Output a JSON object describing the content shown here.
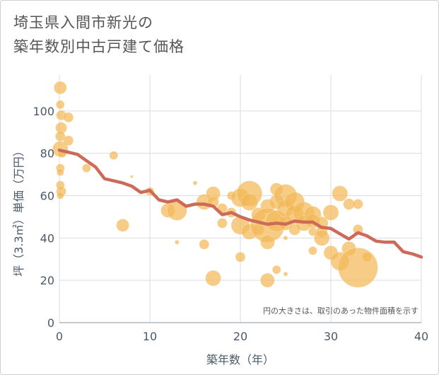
{
  "title_lines": [
    "埼玉県入間市新光の",
    "築年数別中古戸建て価格"
  ],
  "chart_data": {
    "type": "scatter",
    "xlabel": "築年数（年）",
    "ylabel": "坪（3.3㎡）単価（万円）",
    "xlim": [
      0,
      40
    ],
    "ylim": [
      0,
      117
    ],
    "xticks": [
      0,
      10,
      20,
      30,
      40
    ],
    "yticks": [
      0,
      20,
      40,
      60,
      80,
      100
    ],
    "grid": true,
    "annotation": "円の大きさは、取引のあった物件面積を示す",
    "colors": {
      "bubble": "#f2b858",
      "line": "#cd6a58",
      "grid": "#d8dde3",
      "text": "#4a5a6a"
    },
    "points": [
      {
        "x": 0.1,
        "y": 111,
        "s": 9
      },
      {
        "x": 0.1,
        "y": 103,
        "s": 6
      },
      {
        "x": 0.2,
        "y": 98,
        "s": 7
      },
      {
        "x": 0.2,
        "y": 92,
        "s": 8
      },
      {
        "x": 0.1,
        "y": 88,
        "s": 7
      },
      {
        "x": 0.1,
        "y": 82,
        "s": 11
      },
      {
        "x": 0.3,
        "y": 80,
        "s": 6
      },
      {
        "x": 0.1,
        "y": 73,
        "s": 6
      },
      {
        "x": 0.1,
        "y": 71,
        "s": 5
      },
      {
        "x": 0.1,
        "y": 65,
        "s": 6
      },
      {
        "x": 0.2,
        "y": 62,
        "s": 7
      },
      {
        "x": 0.1,
        "y": 60,
        "s": 5
      },
      {
        "x": 1.0,
        "y": 97,
        "s": 7
      },
      {
        "x": 1.0,
        "y": 86,
        "s": 7
      },
      {
        "x": 3.0,
        "y": 73,
        "s": 6
      },
      {
        "x": 6.0,
        "y": 79,
        "s": 6
      },
      {
        "x": 7.0,
        "y": 46,
        "s": 9
      },
      {
        "x": 8.0,
        "y": 69,
        "s": 2
      },
      {
        "x": 10.0,
        "y": 62,
        "s": 6
      },
      {
        "x": 12.0,
        "y": 53,
        "s": 10
      },
      {
        "x": 13.0,
        "y": 53,
        "s": 14
      },
      {
        "x": 13.0,
        "y": 38,
        "s": 3
      },
      {
        "x": 15.0,
        "y": 66,
        "s": 3
      },
      {
        "x": 16.0,
        "y": 57,
        "s": 11
      },
      {
        "x": 16.0,
        "y": 37,
        "s": 7
      },
      {
        "x": 17.0,
        "y": 61,
        "s": 10
      },
      {
        "x": 17.0,
        "y": 57,
        "s": 8
      },
      {
        "x": 17.0,
        "y": 21,
        "s": 11
      },
      {
        "x": 18.0,
        "y": 47,
        "s": 7
      },
      {
        "x": 18.0,
        "y": 54,
        "s": 7
      },
      {
        "x": 19.0,
        "y": 52,
        "s": 7
      },
      {
        "x": 19.0,
        "y": 60,
        "s": 6
      },
      {
        "x": 20.0,
        "y": 59,
        "s": 13
      },
      {
        "x": 20.0,
        "y": 46,
        "s": 13
      },
      {
        "x": 20.0,
        "y": 31,
        "s": 7
      },
      {
        "x": 21.0,
        "y": 61,
        "s": 18
      },
      {
        "x": 21.0,
        "y": 57,
        "s": 12
      },
      {
        "x": 21.0,
        "y": 43,
        "s": 11
      },
      {
        "x": 22.0,
        "y": 51,
        "s": 10
      },
      {
        "x": 22.0,
        "y": 44,
        "s": 8
      },
      {
        "x": 23.0,
        "y": 55,
        "s": 10
      },
      {
        "x": 23.0,
        "y": 46,
        "s": 24
      },
      {
        "x": 23.0,
        "y": 38,
        "s": 10
      },
      {
        "x": 23.0,
        "y": 20,
        "s": 10
      },
      {
        "x": 24.0,
        "y": 63,
        "s": 9
      },
      {
        "x": 24.0,
        "y": 57,
        "s": 10
      },
      {
        "x": 24.0,
        "y": 48,
        "s": 15
      },
      {
        "x": 24.0,
        "y": 25,
        "s": 6
      },
      {
        "x": 25.0,
        "y": 60,
        "s": 16
      },
      {
        "x": 25.0,
        "y": 54,
        "s": 12
      },
      {
        "x": 25.0,
        "y": 47,
        "s": 10
      },
      {
        "x": 25.0,
        "y": 40,
        "s": 3
      },
      {
        "x": 25.0,
        "y": 23,
        "s": 3
      },
      {
        "x": 26.0,
        "y": 57,
        "s": 14
      },
      {
        "x": 26.0,
        "y": 51,
        "s": 13
      },
      {
        "x": 26.0,
        "y": 44,
        "s": 8
      },
      {
        "x": 27.0,
        "y": 52,
        "s": 15
      },
      {
        "x": 27.0,
        "y": 47,
        "s": 11
      },
      {
        "x": 28.0,
        "y": 51,
        "s": 12
      },
      {
        "x": 28.0,
        "y": 48,
        "s": 10
      },
      {
        "x": 28.0,
        "y": 43,
        "s": 6
      },
      {
        "x": 28.0,
        "y": 34,
        "s": 6
      },
      {
        "x": 29.0,
        "y": 47,
        "s": 9
      },
      {
        "x": 29.0,
        "y": 43,
        "s": 8
      },
      {
        "x": 29.0,
        "y": 40,
        "s": 11
      },
      {
        "x": 30.0,
        "y": 52,
        "s": 11
      },
      {
        "x": 30.0,
        "y": 33,
        "s": 10
      },
      {
        "x": 31.0,
        "y": 61,
        "s": 11
      },
      {
        "x": 31.0,
        "y": 29,
        "s": 13
      },
      {
        "x": 32.0,
        "y": 56,
        "s": 8
      },
      {
        "x": 32.0,
        "y": 35,
        "s": 10
      },
      {
        "x": 33.0,
        "y": 56,
        "s": 7
      },
      {
        "x": 33.0,
        "y": 44,
        "s": 7
      },
      {
        "x": 33.0,
        "y": 26,
        "s": 28
      },
      {
        "x": 34.0,
        "y": 31,
        "s": 7
      }
    ],
    "trend": {
      "x": [
        0,
        1,
        2,
        3,
        4,
        5,
        6,
        7,
        8,
        9,
        10,
        11,
        12,
        13,
        14,
        15,
        16,
        17,
        18,
        19,
        20,
        21,
        22,
        23,
        24,
        25,
        26,
        27,
        28,
        29,
        30,
        31,
        32,
        33,
        34,
        35,
        36,
        37,
        38,
        39,
        40
      ],
      "y": [
        81.5,
        80.5,
        79.5,
        76.5,
        73.5,
        68,
        67,
        66,
        64.5,
        61.5,
        62.5,
        58,
        57,
        58,
        55,
        56,
        56,
        55,
        51,
        52,
        50,
        48.5,
        47.5,
        46.5,
        47,
        46.5,
        48,
        47.5,
        47.5,
        45,
        44.5,
        42,
        39.5,
        42.5,
        41,
        38.5,
        38,
        38,
        33.5,
        32.5,
        31
      ]
    }
  }
}
